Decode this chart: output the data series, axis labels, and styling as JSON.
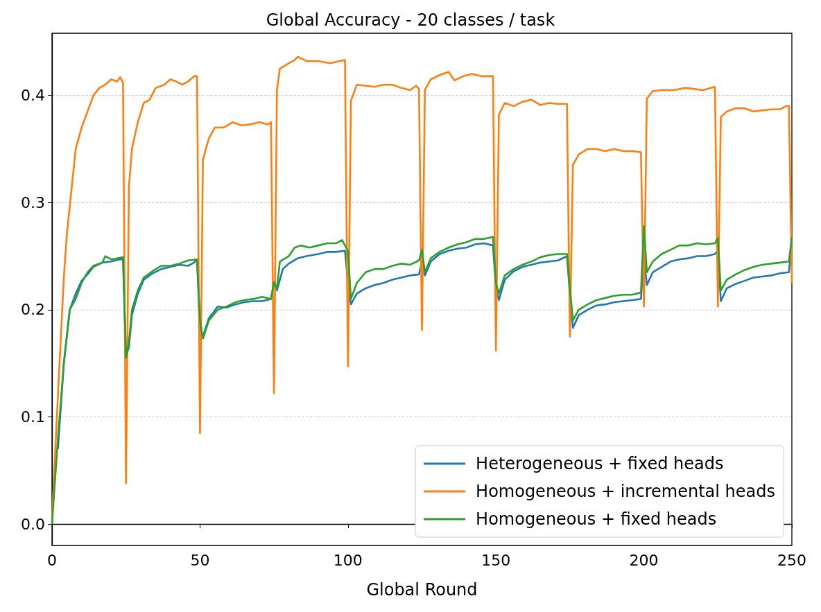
{
  "chart_data": {
    "type": "line",
    "title": "Global Accuracy - 20 classes / task",
    "xlabel": "Global Round",
    "xlim": [
      0,
      250
    ],
    "xticks": [
      0,
      50,
      100,
      150,
      200,
      250
    ],
    "ylim": [
      -0.02,
      0.458
    ],
    "yticks": [
      {
        "value": 0,
        "label": "0.0"
      },
      0.1,
      0.2,
      0.3,
      0.4
    ],
    "grid": "y",
    "legend": "bottom right",
    "marker": "none",
    "line_style": "solid",
    "series": [
      {
        "name": "Heterogeneous + fixed heads",
        "color": "#1f77b4",
        "x": [
          2,
          4,
          6,
          8,
          10,
          12,
          14,
          17,
          20,
          23,
          24,
          25,
          26,
          27,
          29,
          31,
          34,
          37,
          40,
          43,
          46,
          48,
          49,
          50,
          51,
          53,
          56,
          59,
          62,
          65,
          68,
          71,
          74,
          75,
          76,
          78,
          80,
          83,
          86,
          90,
          93,
          96,
          99,
          100,
          101,
          103,
          106,
          109,
          112,
          115,
          118,
          121,
          124,
          125,
          126,
          128,
          131,
          134,
          137,
          140,
          143,
          146,
          149,
          150,
          151,
          153,
          156,
          159,
          162,
          165,
          168,
          171,
          174,
          175,
          176,
          178,
          181,
          184,
          187,
          190,
          193,
          196,
          199,
          200,
          201,
          203,
          206,
          209,
          212,
          215,
          218,
          221,
          224,
          225,
          226,
          228,
          231,
          234,
          237,
          240,
          243,
          246,
          249,
          250
        ],
        "values": [
          0.07,
          0.15,
          0.2,
          0.215,
          0.227,
          0.233,
          0.24,
          0.244,
          0.245,
          0.247,
          0.247,
          0.157,
          0.165,
          0.195,
          0.215,
          0.228,
          0.234,
          0.238,
          0.24,
          0.242,
          0.241,
          0.244,
          0.247,
          0.18,
          0.175,
          0.192,
          0.203,
          0.202,
          0.205,
          0.207,
          0.208,
          0.208,
          0.21,
          0.225,
          0.218,
          0.238,
          0.243,
          0.248,
          0.25,
          0.252,
          0.254,
          0.254,
          0.255,
          0.225,
          0.205,
          0.215,
          0.22,
          0.223,
          0.225,
          0.228,
          0.23,
          0.232,
          0.233,
          0.245,
          0.232,
          0.245,
          0.252,
          0.255,
          0.257,
          0.258,
          0.261,
          0.262,
          0.26,
          0.22,
          0.209,
          0.228,
          0.236,
          0.24,
          0.242,
          0.244,
          0.245,
          0.246,
          0.25,
          0.215,
          0.183,
          0.195,
          0.2,
          0.204,
          0.205,
          0.207,
          0.208,
          0.209,
          0.21,
          0.25,
          0.223,
          0.235,
          0.24,
          0.245,
          0.247,
          0.248,
          0.25,
          0.25,
          0.252,
          0.255,
          0.208,
          0.22,
          0.224,
          0.227,
          0.23,
          0.231,
          0.232,
          0.234,
          0.235,
          0.265
        ]
      },
      {
        "name": "Homogeneous + incremental heads",
        "color": "#ff7f0e",
        "x": [
          0,
          2,
          4,
          5,
          8,
          10,
          12,
          14,
          16,
          18,
          20,
          22,
          23,
          24,
          25,
          26,
          27,
          29,
          31,
          33,
          35,
          38,
          40,
          42,
          44,
          46,
          48,
          49,
          50,
          51,
          53,
          55,
          58,
          61,
          64,
          67,
          70,
          73,
          74,
          75,
          76,
          77,
          80,
          82,
          83,
          86,
          90,
          94,
          97,
          99,
          100,
          101,
          103,
          106,
          109,
          112,
          115,
          118,
          121,
          123,
          124,
          125,
          126,
          128,
          131,
          134,
          136,
          139,
          142,
          145,
          149,
          150,
          151,
          153,
          156,
          159,
          162,
          165,
          168,
          171,
          174,
          175,
          176,
          178,
          181,
          184,
          187,
          190,
          193,
          196,
          199,
          200,
          201,
          203,
          206,
          210,
          214,
          217,
          220,
          224,
          225,
          226,
          228,
          231,
          234,
          237,
          240,
          243,
          246,
          248,
          249,
          250
        ],
        "values": [
          0.005,
          0.12,
          0.23,
          0.27,
          0.35,
          0.37,
          0.385,
          0.4,
          0.407,
          0.41,
          0.415,
          0.413,
          0.417,
          0.412,
          0.038,
          0.315,
          0.35,
          0.375,
          0.393,
          0.396,
          0.407,
          0.41,
          0.415,
          0.413,
          0.41,
          0.413,
          0.418,
          0.418,
          0.085,
          0.34,
          0.36,
          0.37,
          0.37,
          0.375,
          0.372,
          0.373,
          0.375,
          0.373,
          0.375,
          0.122,
          0.405,
          0.425,
          0.43,
          0.433,
          0.436,
          0.432,
          0.432,
          0.43,
          0.432,
          0.433,
          0.147,
          0.395,
          0.41,
          0.409,
          0.408,
          0.41,
          0.41,
          0.407,
          0.405,
          0.409,
          0.406,
          0.181,
          0.405,
          0.415,
          0.419,
          0.422,
          0.414,
          0.418,
          0.42,
          0.418,
          0.418,
          0.162,
          0.382,
          0.393,
          0.39,
          0.394,
          0.396,
          0.391,
          0.393,
          0.392,
          0.392,
          0.175,
          0.335,
          0.345,
          0.35,
          0.35,
          0.348,
          0.35,
          0.348,
          0.348,
          0.347,
          0.203,
          0.397,
          0.404,
          0.405,
          0.405,
          0.407,
          0.406,
          0.405,
          0.408,
          0.203,
          0.38,
          0.385,
          0.388,
          0.388,
          0.385,
          0.386,
          0.387,
          0.387,
          0.39,
          0.39,
          0.225
        ]
      },
      {
        "name": "Homogeneous + fixed heads",
        "color": "#2ca02c",
        "x": [
          0,
          2,
          4,
          6,
          8,
          10,
          12,
          14,
          17,
          18,
          20,
          22,
          24,
          25,
          26,
          27,
          29,
          31,
          34,
          37,
          40,
          43,
          46,
          49,
          50,
          51,
          53,
          56,
          59,
          62,
          65,
          68,
          71,
          74,
          75,
          76,
          77,
          80,
          82,
          84,
          87,
          90,
          93,
          96,
          98,
          100,
          101,
          103,
          106,
          109,
          112,
          115,
          118,
          121,
          124,
          125,
          126,
          128,
          131,
          134,
          137,
          140,
          143,
          146,
          149,
          150,
          151,
          153,
          156,
          159,
          162,
          165,
          168,
          171,
          174,
          175,
          176,
          178,
          181,
          184,
          187,
          190,
          193,
          196,
          199,
          200,
          201,
          203,
          206,
          209,
          212,
          215,
          218,
          221,
          224,
          225,
          226,
          228,
          231,
          234,
          237,
          240,
          243,
          246,
          249,
          250
        ],
        "values": [
          0.0,
          0.08,
          0.15,
          0.2,
          0.21,
          0.225,
          0.235,
          0.241,
          0.244,
          0.25,
          0.247,
          0.248,
          0.249,
          0.155,
          0.17,
          0.2,
          0.218,
          0.23,
          0.236,
          0.241,
          0.241,
          0.243,
          0.246,
          0.247,
          0.19,
          0.173,
          0.19,
          0.2,
          0.203,
          0.207,
          0.209,
          0.21,
          0.212,
          0.21,
          0.226,
          0.22,
          0.245,
          0.25,
          0.258,
          0.26,
          0.258,
          0.26,
          0.262,
          0.262,
          0.265,
          0.255,
          0.21,
          0.225,
          0.235,
          0.238,
          0.238,
          0.241,
          0.243,
          0.242,
          0.246,
          0.256,
          0.235,
          0.248,
          0.254,
          0.258,
          0.261,
          0.263,
          0.266,
          0.266,
          0.268,
          0.225,
          0.215,
          0.232,
          0.238,
          0.242,
          0.245,
          0.249,
          0.251,
          0.252,
          0.252,
          0.22,
          0.19,
          0.2,
          0.205,
          0.209,
          0.211,
          0.213,
          0.214,
          0.214,
          0.216,
          0.278,
          0.235,
          0.245,
          0.252,
          0.256,
          0.26,
          0.26,
          0.262,
          0.261,
          0.262,
          0.267,
          0.218,
          0.228,
          0.233,
          0.237,
          0.24,
          0.242,
          0.243,
          0.244,
          0.245,
          0.268
        ]
      }
    ]
  }
}
